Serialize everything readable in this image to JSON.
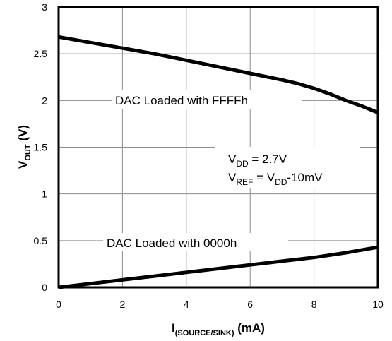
{
  "chart_data": {
    "type": "line",
    "xlabel": "I",
    "xlabel_sub": "(SOURCE/SINK)",
    "xlabel_unit": " (mA)",
    "ylabel": "V",
    "ylabel_sub": "OUT",
    "ylabel_unit": " (V)",
    "xlim": [
      0,
      10
    ],
    "ylim": [
      0,
      3
    ],
    "x_ticks": [
      "0",
      "2",
      "4",
      "6",
      "8",
      "10"
    ],
    "y_ticks": [
      "0",
      "0.5",
      "1",
      "1.5",
      "2",
      "2.5",
      "3"
    ],
    "grid": true,
    "series": [
      {
        "name": "DAC Loaded with FFFFh",
        "x": [
          0,
          1,
          2,
          3,
          4,
          5,
          6,
          7,
          7.5,
          8,
          8.5,
          9,
          9.5,
          10
        ],
        "y": [
          2.68,
          2.62,
          2.56,
          2.5,
          2.43,
          2.36,
          2.29,
          2.22,
          2.18,
          2.13,
          2.07,
          2.0,
          1.94,
          1.87
        ]
      },
      {
        "name": "DAC Loaded with 0000h",
        "x": [
          0,
          1,
          2,
          3,
          4,
          5,
          6,
          7,
          8,
          9,
          10
        ],
        "y": [
          0.0,
          0.04,
          0.08,
          0.12,
          0.16,
          0.2,
          0.24,
          0.28,
          0.32,
          0.37,
          0.43
        ]
      }
    ],
    "annotations": {
      "vdd": {
        "v": "V",
        "sub": "DD",
        "rest": " = 2.7V"
      },
      "vref": {
        "v": "V",
        "sub1": "REF",
        "mid": " = V",
        "sub2": "DD",
        "rest": "-10mV"
      }
    }
  }
}
